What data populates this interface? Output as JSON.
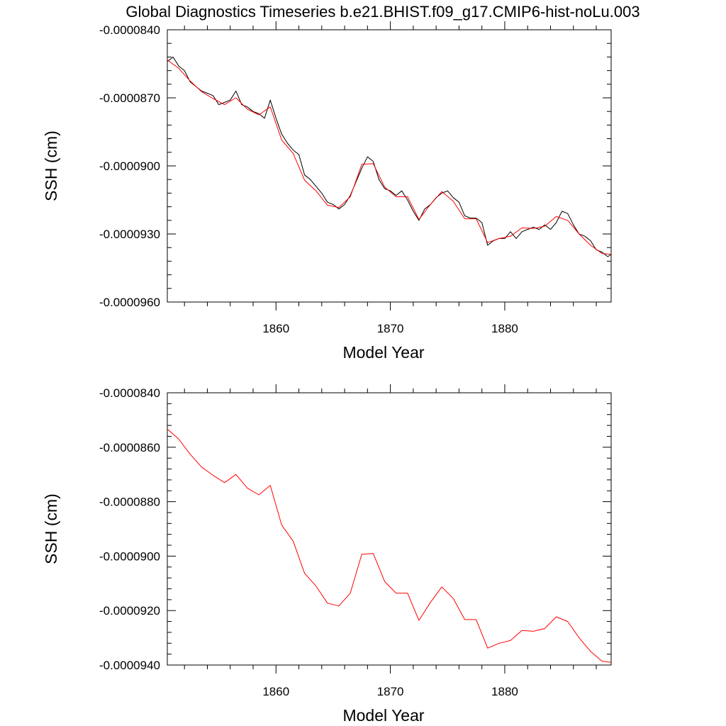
{
  "title": "Global Diagnostics Timeseries b.e21.BHIST.f09_g17.CMIP6-hist-noLu.003",
  "colors": {
    "monthly": "#000000",
    "annual": "#ff0000",
    "axis": "#000000",
    "background": "#ffffff"
  },
  "chart_data": [
    {
      "type": "line",
      "xlabel": "Model Year",
      "ylabel": "SSH (cm)",
      "xlim": [
        1850.5,
        1889.3
      ],
      "ylim": [
        -9.6e-05,
        -8.4e-05
      ],
      "xticks": [
        1860,
        1870,
        1880
      ],
      "xtick_labels": [
        "1860",
        "1870",
        "1880"
      ],
      "yticks": [
        -9.6e-05,
        -9.3e-05,
        -9e-05,
        -8.7e-05,
        -8.4e-05
      ],
      "ytick_labels": [
        "-0.0000960",
        "-0.0000930",
        "-0.0000900",
        "-0.0000870",
        "-0.0000840"
      ],
      "grid": false,
      "series": [
        {
          "role": "monthly",
          "color": "#000000",
          "x": [
            1850.5,
            1851.0,
            1851.5,
            1852.0,
            1852.5,
            1853.0,
            1853.5,
            1854.0,
            1854.5,
            1855.0,
            1855.5,
            1856.0,
            1856.5,
            1857.0,
            1857.5,
            1858.0,
            1858.5,
            1859.0,
            1859.5,
            1860.0,
            1860.5,
            1861.0,
            1861.5,
            1862.0,
            1862.5,
            1863.0,
            1863.5,
            1864.0,
            1864.5,
            1865.0,
            1865.5,
            1866.0,
            1866.5,
            1867.0,
            1867.5,
            1868.0,
            1868.5,
            1869.0,
            1869.5,
            1870.0,
            1870.5,
            1871.0,
            1871.5,
            1872.0,
            1872.5,
            1873.0,
            1873.5,
            1874.0,
            1874.5,
            1875.0,
            1875.5,
            1876.0,
            1876.5,
            1877.0,
            1877.5,
            1878.0,
            1878.5,
            1879.0,
            1879.5,
            1880.0,
            1880.5,
            1881.0,
            1881.5,
            1882.0,
            1882.5,
            1883.0,
            1883.5,
            1884.0,
            1884.5,
            1885.0,
            1885.5,
            1886.0,
            1886.5,
            1887.0,
            1887.5,
            1888.0,
            1888.5,
            1889.0,
            1889.3
          ],
          "y": [
            -8.54e-05,
            -8.52e-05,
            -8.56e-05,
            -8.58e-05,
            -8.63e-05,
            -8.65e-05,
            -8.67e-05,
            -8.68e-05,
            -8.69e-05,
            -8.73e-05,
            -8.72e-05,
            -8.71e-05,
            -8.67e-05,
            -8.73e-05,
            -8.74e-05,
            -8.76e-05,
            -8.77e-05,
            -8.79e-05,
            -8.71e-05,
            -8.79e-05,
            -8.86e-05,
            -8.9e-05,
            -8.93e-05,
            -8.95e-05,
            -9.04e-05,
            -9.06e-05,
            -9.09e-05,
            -9.12e-05,
            -9.16e-05,
            -9.17e-05,
            -9.19e-05,
            -9.17e-05,
            -9.13e-05,
            -9.07e-05,
            -9.01e-05,
            -8.96e-05,
            -8.98e-05,
            -9.06e-05,
            -9.1e-05,
            -9.11e-05,
            -9.13e-05,
            -9.11e-05,
            -9.15e-05,
            -9.2e-05,
            -9.24e-05,
            -9.19e-05,
            -9.17e-05,
            -9.14e-05,
            -9.12e-05,
            -9.11e-05,
            -9.14e-05,
            -9.16e-05,
            -9.22e-05,
            -9.23e-05,
            -9.23e-05,
            -9.25e-05,
            -9.35e-05,
            -9.33e-05,
            -9.32e-05,
            -9.32e-05,
            -9.29e-05,
            -9.32e-05,
            -9.29e-05,
            -9.28e-05,
            -9.27e-05,
            -9.28e-05,
            -9.26e-05,
            -9.28e-05,
            -9.25e-05,
            -9.2e-05,
            -9.21e-05,
            -9.26e-05,
            -9.3e-05,
            -9.31e-05,
            -9.33e-05,
            -9.37e-05,
            -9.38e-05,
            -9.4e-05,
            -9.39e-05
          ]
        },
        {
          "role": "annual",
          "color": "#ff0000",
          "x": [
            1850.5,
            1851.5,
            1852.5,
            1853.5,
            1854.5,
            1855.5,
            1856.5,
            1857.5,
            1858.5,
            1859.5,
            1860.5,
            1861.5,
            1862.5,
            1863.5,
            1864.5,
            1865.5,
            1866.5,
            1867.5,
            1868.5,
            1869.5,
            1870.5,
            1871.5,
            1872.5,
            1873.5,
            1874.5,
            1875.5,
            1876.5,
            1877.5,
            1878.5,
            1879.5,
            1880.5,
            1881.5,
            1882.5,
            1883.5,
            1884.5,
            1885.5,
            1886.5,
            1887.5,
            1888.5,
            1889.3
          ],
          "y": [
            -8.533e-05,
            -8.57e-05,
            -8.626e-05,
            -8.673e-05,
            -8.703e-05,
            -8.73e-05,
            -8.7e-05,
            -8.75e-05,
            -8.775e-05,
            -8.74e-05,
            -8.886e-05,
            -8.945e-05,
            -9.063e-05,
            -9.11e-05,
            -9.173e-05,
            -9.183e-05,
            -9.136e-05,
            -8.993e-05,
            -8.99e-05,
            -9.093e-05,
            -9.136e-05,
            -9.136e-05,
            -9.236e-05,
            -9.17e-05,
            -9.113e-05,
            -9.156e-05,
            -9.233e-05,
            -9.233e-05,
            -9.338e-05,
            -9.32e-05,
            -9.31e-05,
            -9.273e-05,
            -9.276e-05,
            -9.266e-05,
            -9.223e-05,
            -9.24e-05,
            -9.3e-05,
            -9.35e-05,
            -9.386e-05,
            -9.39e-05
          ]
        }
      ]
    },
    {
      "type": "line",
      "xlabel": "Model Year",
      "ylabel": "SSH (cm)",
      "xlim": [
        1850.5,
        1889.3
      ],
      "ylim": [
        -9.4e-05,
        -8.4e-05
      ],
      "xticks": [
        1860,
        1870,
        1880
      ],
      "xtick_labels": [
        "1860",
        "1870",
        "1880"
      ],
      "yticks": [
        -9.4e-05,
        -9.2e-05,
        -9e-05,
        -8.8e-05,
        -8.6e-05,
        -8.4e-05
      ],
      "ytick_labels": [
        "-0.0000940",
        "-0.0000920",
        "-0.0000900",
        "-0.0000880",
        "-0.0000860",
        "-0.0000840"
      ],
      "grid": false,
      "series": [
        {
          "role": "annual",
          "color": "#ff0000",
          "x": [
            1850.5,
            1851.5,
            1852.5,
            1853.5,
            1854.5,
            1855.5,
            1856.5,
            1857.5,
            1858.5,
            1859.5,
            1860.5,
            1861.5,
            1862.5,
            1863.5,
            1864.5,
            1865.5,
            1866.5,
            1867.5,
            1868.5,
            1869.5,
            1870.5,
            1871.5,
            1872.5,
            1873.5,
            1874.5,
            1875.5,
            1876.5,
            1877.5,
            1878.5,
            1879.5,
            1880.5,
            1881.5,
            1882.5,
            1883.5,
            1884.5,
            1885.5,
            1886.5,
            1887.5,
            1888.5,
            1889.3
          ],
          "y": [
            -8.533e-05,
            -8.57e-05,
            -8.626e-05,
            -8.673e-05,
            -8.703e-05,
            -8.73e-05,
            -8.7e-05,
            -8.75e-05,
            -8.775e-05,
            -8.74e-05,
            -8.886e-05,
            -8.945e-05,
            -9.063e-05,
            -9.11e-05,
            -9.173e-05,
            -9.183e-05,
            -9.136e-05,
            -8.993e-05,
            -8.99e-05,
            -9.093e-05,
            -9.136e-05,
            -9.136e-05,
            -9.236e-05,
            -9.17e-05,
            -9.113e-05,
            -9.156e-05,
            -9.233e-05,
            -9.233e-05,
            -9.338e-05,
            -9.32e-05,
            -9.31e-05,
            -9.273e-05,
            -9.276e-05,
            -9.266e-05,
            -9.223e-05,
            -9.24e-05,
            -9.3e-05,
            -9.35e-05,
            -9.386e-05,
            -9.39e-05
          ]
        }
      ]
    }
  ]
}
